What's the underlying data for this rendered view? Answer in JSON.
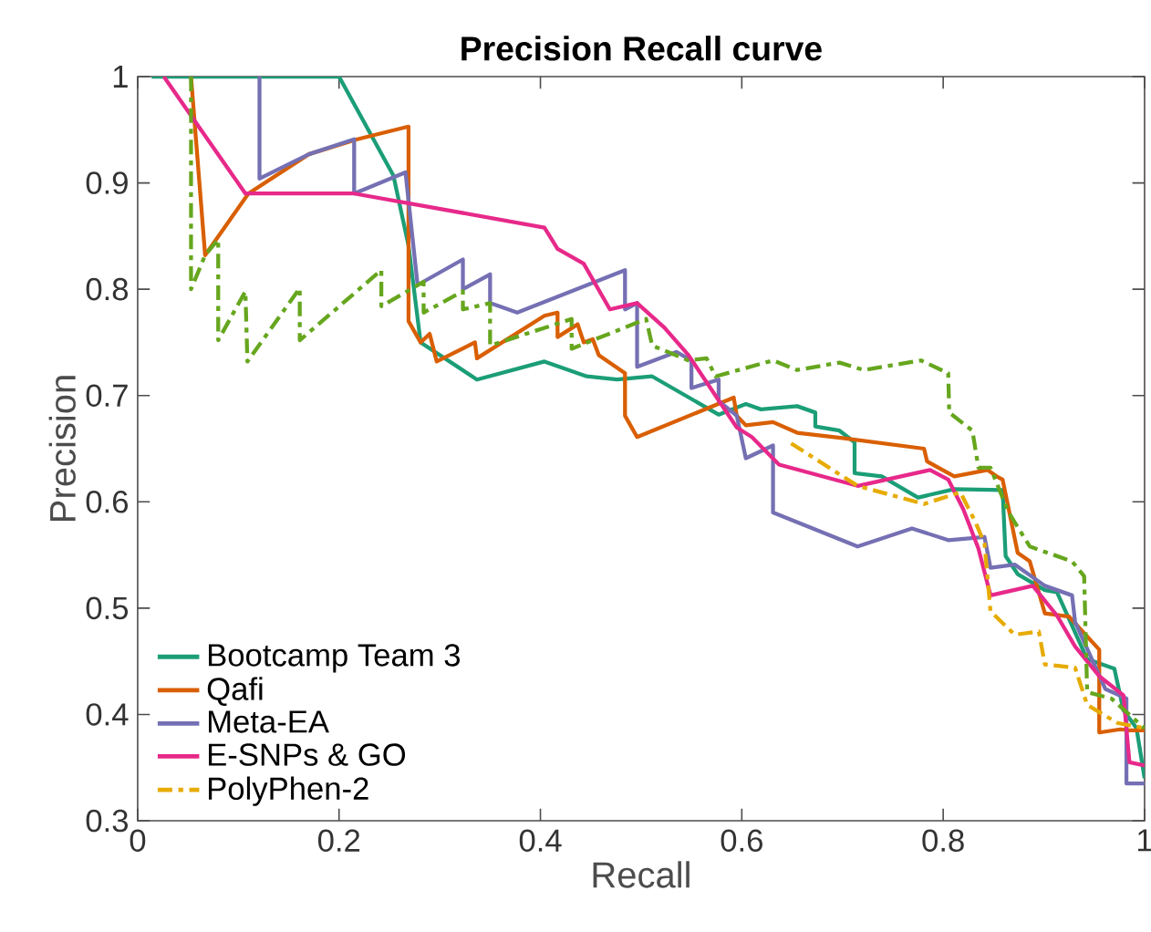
{
  "chart_data": {
    "type": "line",
    "title": "Precision Recall curve",
    "xlabel": "Recall",
    "ylabel": "Precision",
    "xlim": [
      0,
      1
    ],
    "ylim": [
      0.3,
      1
    ],
    "xticks": [
      0,
      0.2,
      0.4,
      0.6,
      0.8,
      1
    ],
    "yticks": [
      0.3,
      0.4,
      0.5,
      0.6,
      0.7,
      0.8,
      0.9,
      1
    ],
    "grid": false,
    "legend": "bottom left",
    "marker": "none",
    "series": [
      {
        "name": "Bootcamp Team 3",
        "color": "#1b9e77",
        "line_style": "solid",
        "x": [
          0.014,
          0.2,
          0.254,
          0.269,
          0.281,
          0.337,
          0.404,
          0.446,
          0.476,
          0.511,
          0.577,
          0.604,
          0.619,
          0.655,
          0.673,
          0.673,
          0.697,
          0.712,
          0.712,
          0.739,
          0.775,
          0.811,
          0.859,
          0.862,
          0.874,
          0.901,
          0.913,
          0.943,
          0.97,
          0.979,
          0.992,
          1.0
        ],
        "values": [
          1,
          1,
          0.907,
          0.841,
          0.75,
          0.715,
          0.732,
          0.718,
          0.715,
          0.718,
          0.682,
          0.692,
          0.687,
          0.69,
          0.684,
          0.671,
          0.667,
          0.656,
          0.627,
          0.624,
          0.604,
          0.612,
          0.611,
          0.549,
          0.532,
          0.517,
          0.515,
          0.452,
          0.443,
          0.404,
          0.387,
          0.34
        ]
      },
      {
        "name": "Qafi",
        "color": "#d95f02",
        "line_style": "solid",
        "x": [
          0.053,
          0.067,
          0.11,
          0.17,
          0.218,
          0.269,
          0.269,
          0.281,
          0.29,
          0.297,
          0.335,
          0.337,
          0.404,
          0.417,
          0.417,
          0.437,
          0.443,
          0.452,
          0.458,
          0.484,
          0.484,
          0.496,
          0.592,
          0.595,
          0.604,
          0.631,
          0.655,
          0.7,
          0.781,
          0.784,
          0.811,
          0.844,
          0.853,
          0.859,
          0.874,
          0.886,
          0.901,
          0.925,
          0.955,
          0.955,
          0.976,
          0.985,
          1.0
        ],
        "values": [
          1,
          0.832,
          0.89,
          0.927,
          0.941,
          0.953,
          0.77,
          0.75,
          0.758,
          0.732,
          0.75,
          0.735,
          0.775,
          0.778,
          0.755,
          0.767,
          0.75,
          0.753,
          0.738,
          0.721,
          0.681,
          0.661,
          0.698,
          0.681,
          0.672,
          0.675,
          0.665,
          0.66,
          0.65,
          0.638,
          0.624,
          0.63,
          0.624,
          0.621,
          0.552,
          0.544,
          0.495,
          0.492,
          0.461,
          0.383,
          0.386,
          0.385,
          0.385
        ]
      },
      {
        "name": "Meta-EA",
        "color": "#7570b3",
        "line_style": "solid",
        "x": [
          0.121,
          0.121,
          0.17,
          0.215,
          0.215,
          0.266,
          0.278,
          0.323,
          0.323,
          0.35,
          0.35,
          0.377,
          0.484,
          0.484,
          0.496,
          0.496,
          0.535,
          0.55,
          0.55,
          0.577,
          0.577,
          0.595,
          0.604,
          0.631,
          0.631,
          0.715,
          0.769,
          0.805,
          0.841,
          0.847,
          0.871,
          0.901,
          0.928,
          0.931,
          0.961,
          0.982,
          0.982,
          1.0
        ],
        "values": [
          1,
          0.904,
          0.927,
          0.941,
          0.89,
          0.91,
          0.804,
          0.828,
          0.8,
          0.814,
          0.787,
          0.778,
          0.818,
          0.781,
          0.787,
          0.727,
          0.741,
          0.733,
          0.707,
          0.715,
          0.695,
          0.681,
          0.641,
          0.653,
          0.59,
          0.558,
          0.575,
          0.564,
          0.567,
          0.538,
          0.541,
          0.521,
          0.512,
          0.487,
          0.424,
          0.415,
          0.335,
          0.335
        ]
      },
      {
        "name": "E-SNPs & GO",
        "color": "#e7298a",
        "line_style": "solid",
        "x": [
          0.026,
          0.107,
          0.215,
          0.404,
          0.417,
          0.443,
          0.469,
          0.496,
          0.523,
          0.547,
          0.595,
          0.61,
          0.637,
          0.715,
          0.787,
          0.805,
          0.82,
          0.835,
          0.847,
          0.889,
          0.913,
          0.931,
          0.955,
          0.979,
          0.985,
          1.0
        ],
        "values": [
          1,
          0.89,
          0.89,
          0.858,
          0.838,
          0.824,
          0.781,
          0.787,
          0.764,
          0.738,
          0.67,
          0.661,
          0.635,
          0.615,
          0.63,
          0.621,
          0.593,
          0.556,
          0.512,
          0.521,
          0.493,
          0.464,
          0.436,
          0.418,
          0.355,
          0.352
        ]
      },
      {
        "color": "#66a61e",
        "line_style": "dashed",
        "x": [
          0.053,
          0.053,
          0.067,
          0.08,
          0.08,
          0.107,
          0.109,
          0.161,
          0.161,
          0.242,
          0.242,
          0.284,
          0.284,
          0.323,
          0.323,
          0.35,
          0.35,
          0.431,
          0.431,
          0.505,
          0.511,
          0.547,
          0.565,
          0.574,
          0.631,
          0.655,
          0.697,
          0.721,
          0.778,
          0.805,
          0.806,
          0.829,
          0.835,
          0.847,
          0.865,
          0.886,
          0.928,
          0.94,
          0.943,
          0.967,
          1.0
        ],
        "values": [
          1,
          0.8,
          0.832,
          0.847,
          0.752,
          0.798,
          0.732,
          0.801,
          0.752,
          0.818,
          0.784,
          0.807,
          0.778,
          0.798,
          0.781,
          0.787,
          0.747,
          0.772,
          0.744,
          0.772,
          0.747,
          0.733,
          0.735,
          0.718,
          0.733,
          0.724,
          0.731,
          0.724,
          0.733,
          0.721,
          0.684,
          0.667,
          0.632,
          0.632,
          0.59,
          0.558,
          0.544,
          0.53,
          0.421,
          0.415,
          0.387
        ]
      },
      {
        "name": "PolyPhen-2",
        "color": "#e6ab02",
        "line_style": "dashed",
        "x": [
          0.649,
          0.715,
          0.781,
          0.817,
          0.832,
          0.841,
          0.847,
          0.871,
          0.895,
          0.901,
          0.931,
          0.943,
          0.973,
          1.0
        ],
        "values": [
          0.655,
          0.615,
          0.598,
          0.609,
          0.581,
          0.561,
          0.497,
          0.475,
          0.478,
          0.447,
          0.444,
          0.409,
          0.392,
          0.387
        ]
      }
    ]
  }
}
